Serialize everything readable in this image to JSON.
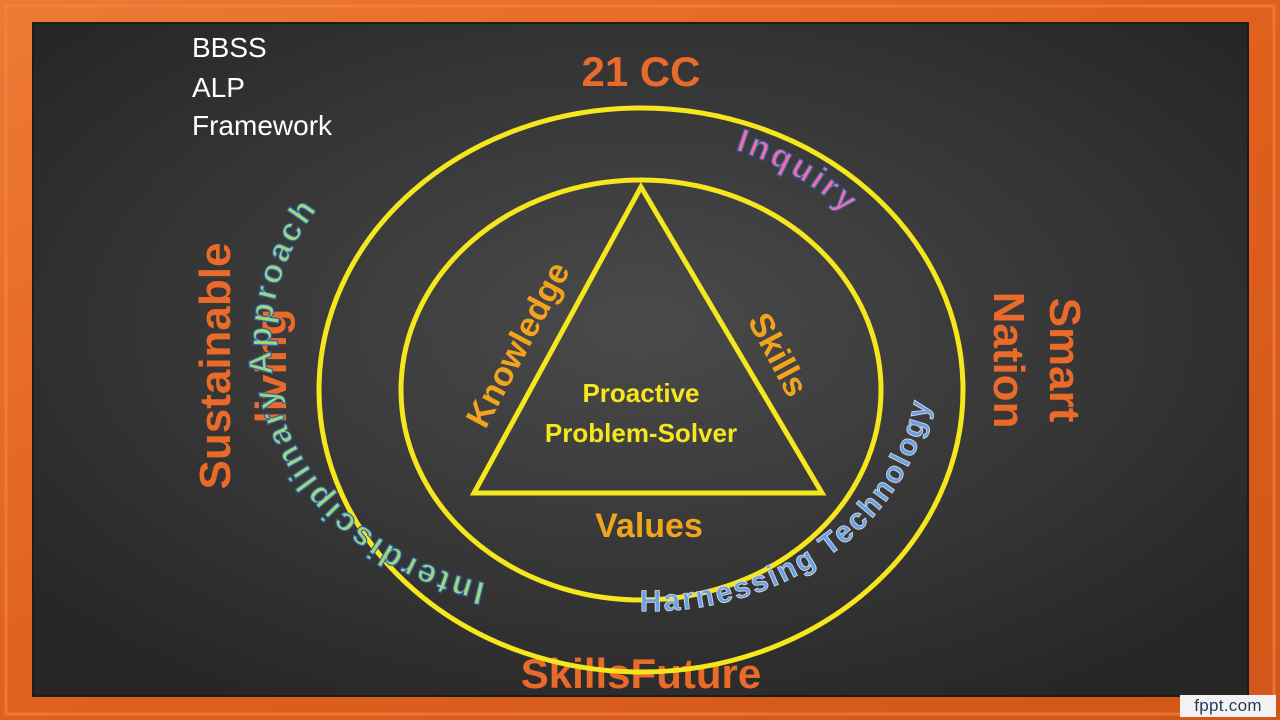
{
  "slide": {
    "framework_title": [
      "BBSS",
      "ALP",
      "Framework"
    ],
    "top_label": "21 CC",
    "bottom_label": "SkillsFuture",
    "left_label": [
      "Sustainable",
      "living"
    ],
    "right_label": [
      "Smart",
      "Nation"
    ],
    "arc_labels": {
      "interdisciplinary": "Interdisciplinary Approach",
      "inquiry": "Inquiry",
      "technology": "Harnessing Technology"
    },
    "triangle": {
      "left_side": "Knowledge",
      "right_side": "Skills",
      "bottom": "Values",
      "center": [
        "Proactive",
        "Problem-Solver"
      ]
    },
    "credit": "fppt.com"
  },
  "colors": {
    "frame_orange": "#e2621f",
    "board_dark": "#2e2e2e",
    "ring_yellow": "#f5e61e",
    "label_orange": "#ea6a2a",
    "triangle_text": "#f2a41c",
    "center_text": "#f5e61e",
    "green_text": "#9ed77a",
    "pink_text": "#f06fa3",
    "blue_text": "#6aa0e6",
    "white_text": "#ffffff"
  },
  "icons": []
}
